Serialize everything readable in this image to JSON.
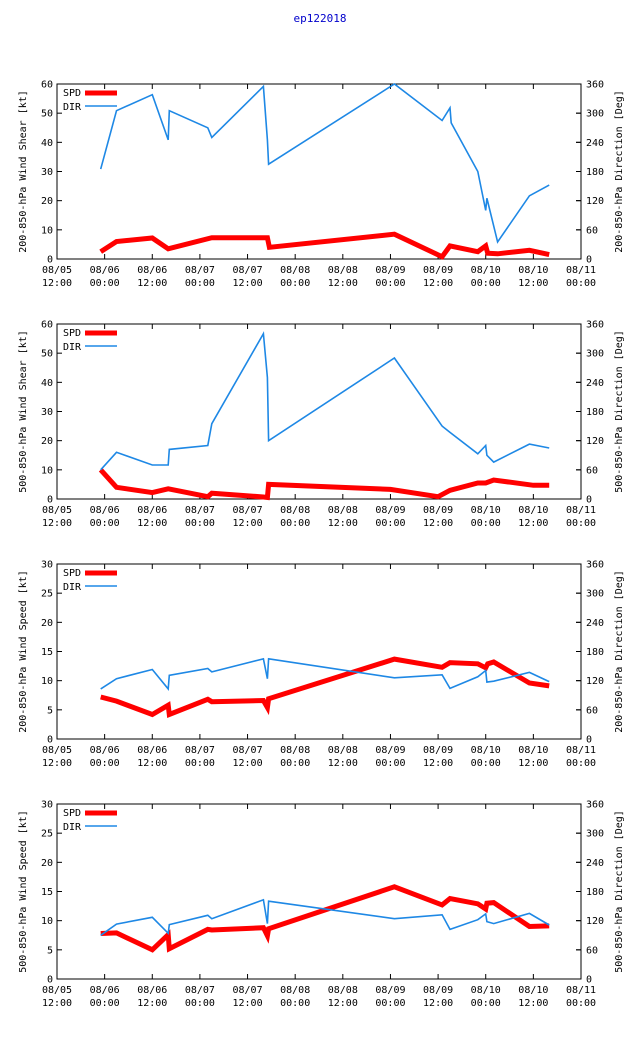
{
  "title": "ep122018",
  "colors": {
    "spd": "#ff0000",
    "dir": "#1e88e5",
    "axis": "#000000",
    "title": "#0000cc"
  },
  "x_ticks": [
    {
      "t": 0,
      "l1": "08/05",
      "l2": "12:00"
    },
    {
      "t": 12,
      "l1": "08/06",
      "l2": "00:00"
    },
    {
      "t": 24,
      "l1": "08/06",
      "l2": "12:00"
    },
    {
      "t": 36,
      "l1": "08/07",
      "l2": "00:00"
    },
    {
      "t": 48,
      "l1": "08/07",
      "l2": "12:00"
    },
    {
      "t": 60,
      "l1": "08/08",
      "l2": "00:00"
    },
    {
      "t": 72,
      "l1": "08/08",
      "l2": "12:00"
    },
    {
      "t": 84,
      "l1": "08/09",
      "l2": "00:00"
    },
    {
      "t": 96,
      "l1": "08/09",
      "l2": "12:00"
    },
    {
      "t": 108,
      "l1": "08/10",
      "l2": "00:00"
    },
    {
      "t": 120,
      "l1": "08/10",
      "l2": "12:00"
    },
    {
      "t": 132,
      "l1": "08/11",
      "l2": "00:00"
    }
  ],
  "legend": {
    "spd": "SPD",
    "dir": "DIR"
  },
  "chart_data": [
    {
      "type": "line",
      "title": "",
      "xlabel": "",
      "ylabel": "200-850-hPa Wind Shear [kt]",
      "y2label": "200-850-hPa Direction [Deg]",
      "xlim": [
        0,
        132
      ],
      "ylim": [
        0,
        60
      ],
      "y2lim": [
        0,
        360
      ],
      "yticks": [
        0,
        10,
        20,
        30,
        40,
        50,
        60
      ],
      "y2ticks": [
        0,
        60,
        120,
        180,
        240,
        300,
        360
      ],
      "series": [
        {
          "name": "SPD",
          "axis": "left",
          "x": [
            11,
            15,
            24,
            28,
            39,
            53,
            53.5,
            85,
            97,
            99,
            106,
            108,
            108.5,
            111,
            119,
            124
          ],
          "y": [
            2.5,
            6,
            7.2,
            3.5,
            7.3,
            7.3,
            4,
            8.5,
            0.8,
            4.5,
            2.5,
            4.5,
            2,
            1.8,
            3,
            1.5
          ]
        },
        {
          "name": "DIR",
          "axis": "right",
          "x": [
            11,
            15,
            24,
            28,
            28.3,
            38,
            39,
            52,
            53,
            53.3,
            85,
            97,
            99,
            99.3,
            106,
            108,
            108.3,
            111,
            119,
            124
          ],
          "y": [
            185,
            305,
            338,
            245,
            305,
            270,
            250,
            355,
            245,
            195,
            360,
            285,
            311,
            280,
            180,
            100,
            125,
            35,
            130,
            152
          ]
        }
      ]
    },
    {
      "type": "line",
      "title": "",
      "xlabel": "",
      "ylabel": "500-850-hPa Wind Shear [kt]",
      "y2label": "500-850-hPa Direction [Deg]",
      "xlim": [
        0,
        132
      ],
      "ylim": [
        0,
        60
      ],
      "y2lim": [
        0,
        360
      ],
      "yticks": [
        0,
        10,
        20,
        30,
        40,
        50,
        60
      ],
      "y2ticks": [
        0,
        60,
        120,
        180,
        240,
        300,
        360
      ],
      "series": [
        {
          "name": "SPD",
          "axis": "left",
          "x": [
            11,
            15,
            24,
            28,
            38,
            39,
            52,
            53,
            53.3,
            84,
            96,
            99,
            106,
            108,
            110,
            120,
            124
          ],
          "y": [
            10,
            4,
            2.2,
            3.5,
            0.8,
            2,
            0.7,
            0.5,
            5,
            3.3,
            0.8,
            3,
            5.5,
            5.5,
            6.5,
            4.7,
            4.7
          ]
        },
        {
          "name": "DIR",
          "axis": "right",
          "x": [
            11,
            15,
            24,
            28,
            28.3,
            38,
            39,
            52,
            53,
            53.3,
            85,
            97,
            99,
            106,
            108,
            108.3,
            110,
            119,
            124
          ],
          "y": [
            60,
            96,
            70,
            70,
            102,
            110,
            155,
            340,
            250,
            120,
            290,
            150,
            137,
            93,
            110,
            90,
            76,
            113,
            105
          ]
        }
      ]
    },
    {
      "type": "line",
      "title": "",
      "xlabel": "",
      "ylabel": "200-850-hPa Wind Speed [kt]",
      "y2label": "200-850-hPa Direction [Deg]",
      "xlim": [
        0,
        132
      ],
      "ylim": [
        0,
        30
      ],
      "y2lim": [
        0,
        360
      ],
      "yticks": [
        0,
        5,
        10,
        15,
        20,
        25,
        30
      ],
      "y2ticks": [
        0,
        60,
        120,
        180,
        240,
        300,
        360
      ],
      "series": [
        {
          "name": "SPD",
          "axis": "left",
          "x": [
            11,
            15,
            24,
            28,
            28.3,
            38,
            39,
            52,
            53,
            53.3,
            85,
            97,
            99,
            106,
            108,
            108.5,
            110,
            119,
            124
          ],
          "y": [
            7.2,
            6.5,
            4.2,
            5.8,
            4.2,
            6.8,
            6.4,
            6.6,
            5.4,
            6.9,
            13.7,
            12.3,
            13.1,
            12.9,
            12.2,
            12.9,
            13.2,
            9.6,
            9.1
          ]
        },
        {
          "name": "DIR",
          "axis": "right",
          "x": [
            11,
            15,
            24,
            28,
            28.3,
            38,
            39,
            52,
            53,
            53.3,
            85,
            97,
            99,
            106,
            108,
            108.3,
            110,
            119,
            124
          ],
          "y": [
            103,
            124,
            143,
            103,
            131,
            145,
            138,
            165,
            124,
            165,
            126,
            132,
            104,
            128,
            141,
            117,
            119,
            137,
            118
          ]
        }
      ]
    },
    {
      "type": "line",
      "title": "",
      "xlabel": "",
      "ylabel": "500-850-hPa Wind Speed [kt]",
      "y2label": "500-850-hPa Direction [Deg]",
      "xlim": [
        0,
        132
      ],
      "ylim": [
        0,
        30
      ],
      "y2lim": [
        0,
        360
      ],
      "yticks": [
        0,
        5,
        10,
        15,
        20,
        25,
        30
      ],
      "y2ticks": [
        0,
        60,
        120,
        180,
        240,
        300,
        360
      ],
      "series": [
        {
          "name": "SPD",
          "axis": "left",
          "x": [
            11,
            15,
            24,
            28,
            28.3,
            38,
            39,
            52,
            53,
            53.3,
            85,
            97,
            99,
            106,
            108,
            108.3,
            110,
            119,
            124
          ],
          "y": [
            7.8,
            7.9,
            5,
            7.6,
            5.2,
            8.5,
            8.4,
            8.8,
            7.4,
            8.6,
            15.8,
            12.7,
            13.8,
            12.9,
            12,
            13,
            13.1,
            9,
            9.1
          ]
        },
        {
          "name": "DIR",
          "axis": "right",
          "x": [
            11,
            15,
            24,
            28,
            28.3,
            38,
            39,
            52,
            53,
            53.3,
            85,
            97,
            99,
            106,
            108,
            108.3,
            110,
            119,
            124
          ],
          "y": [
            90,
            113,
            127,
            94,
            112,
            131,
            124,
            163,
            114,
            160,
            124,
            132,
            102,
            122,
            134,
            118,
            114,
            135,
            111
          ]
        }
      ]
    }
  ]
}
